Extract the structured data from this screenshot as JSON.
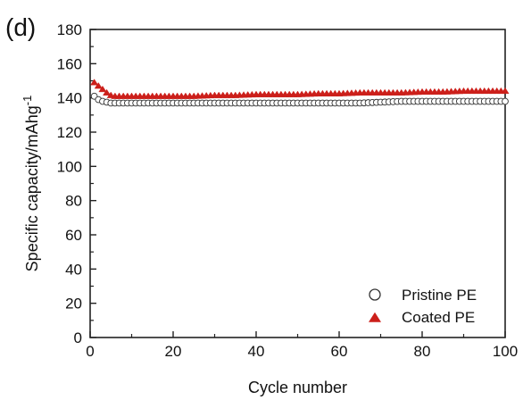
{
  "chart_data": {
    "type": "scatter",
    "panel_label": "(d)",
    "xlabel": "Cycle number",
    "ylabel": "Specific capacity/mAhg",
    "ylabel_superscript": "-1",
    "xlim": [
      0,
      100
    ],
    "ylim": [
      0,
      180
    ],
    "x_ticks": [
      "0",
      "20",
      "40",
      "60",
      "80",
      "100"
    ],
    "y_ticks": [
      "0",
      "20",
      "40",
      "60",
      "80",
      "100",
      "120",
      "140",
      "160",
      "180"
    ],
    "legend_position": "bottom-right",
    "series": [
      {
        "name": "Pristine PE",
        "marker": "open-circle",
        "color": "#333333",
        "x": [
          1,
          2,
          3,
          4,
          5,
          6,
          7,
          8,
          9,
          10,
          15,
          20,
          25,
          30,
          35,
          40,
          45,
          50,
          55,
          60,
          65,
          70,
          75,
          80,
          85,
          90,
          95,
          100
        ],
        "y": [
          141,
          139,
          138,
          137.5,
          137,
          137,
          137,
          137,
          137,
          137,
          137,
          137,
          137,
          137,
          137,
          137,
          137,
          137,
          137,
          137,
          137,
          137.5,
          138,
          138,
          138,
          138,
          138,
          138
        ]
      },
      {
        "name": "Coated PE",
        "marker": "filled-triangle",
        "color": "#cc1f1a",
        "x": [
          1,
          2,
          3,
          4,
          5,
          6,
          7,
          8,
          9,
          10,
          15,
          20,
          25,
          30,
          35,
          40,
          45,
          50,
          55,
          60,
          65,
          70,
          75,
          80,
          85,
          90,
          95,
          100
        ],
        "y": [
          149,
          147,
          145,
          143,
          141.5,
          141,
          141,
          141,
          141,
          141,
          141,
          141,
          141,
          141.5,
          141.5,
          142,
          142,
          142,
          142.5,
          142.5,
          143,
          143,
          143,
          143.5,
          143.5,
          144,
          144,
          144
        ]
      }
    ]
  }
}
